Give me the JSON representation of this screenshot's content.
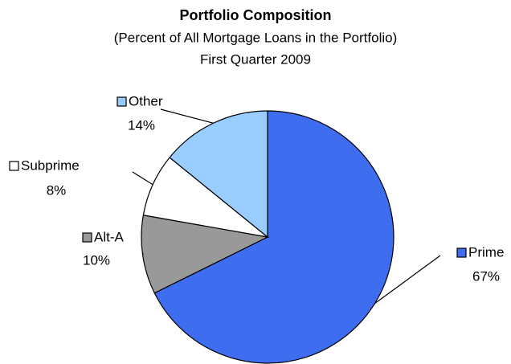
{
  "chart_data": {
    "type": "pie",
    "title": "Portfolio Composition",
    "subtitle": [
      "(Percent of All Mortgage Loans in the Portfolio)",
      "First Quarter 2009"
    ],
    "categories": [
      "Prime",
      "Alt-A",
      "Subprime",
      "Other"
    ],
    "values": [
      67,
      10,
      8,
      14
    ],
    "value_labels": [
      "67%",
      "10%",
      "8%",
      "14%"
    ],
    "colors": [
      "#3f6df0",
      "#999999",
      "#ffffff",
      "#99ccff"
    ]
  }
}
